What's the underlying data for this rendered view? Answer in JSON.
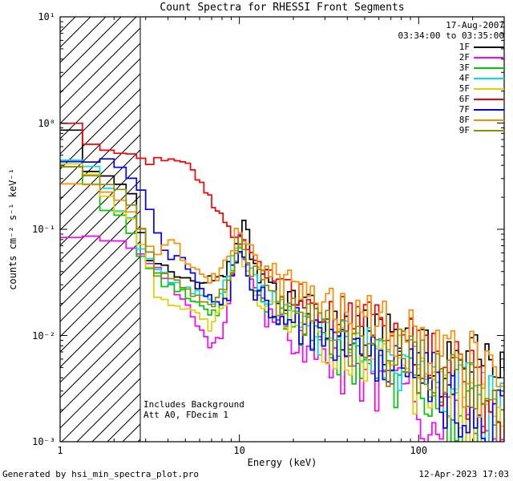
{
  "title": "Count Spectra for RHESSI Front Segments",
  "header": {
    "date": "17-Aug-2007",
    "time_range": "03:34:00 to 03:35:00"
  },
  "annotations": {
    "background": "Includes Background",
    "attenuator": "Att A0, FDecim 1"
  },
  "footer": {
    "generator": "Generated by hsi_min_spectra_plot.pro",
    "timestamp": "12-Apr-2023 17:03"
  },
  "axes": {
    "x_label": "Energy (keV)",
    "y_label": "counts cm⁻² s⁻¹ keV⁻¹",
    "x_ticks": [
      {
        "value": 1,
        "label": "1"
      },
      {
        "value": 10,
        "label": "10"
      },
      {
        "value": 100,
        "label": "100"
      }
    ],
    "y_ticks": [
      {
        "value": 10,
        "label": "10¹"
      },
      {
        "value": 1,
        "label": "10⁰"
      },
      {
        "value": 0.1,
        "label": "10⁻¹"
      },
      {
        "value": 0.01,
        "label": "10⁻²"
      },
      {
        "value": 0.001,
        "label": "10⁻³"
      }
    ]
  },
  "chart_data": {
    "type": "line",
    "title": "Count Spectra for RHESSI Front Segments",
    "xlabel": "Energy (keV)",
    "ylabel": "counts cm⁻² s⁻¹ keV⁻¹",
    "x_scale": "log",
    "y_scale": "log",
    "xlim": [
      1,
      300
    ],
    "ylim": [
      0.001,
      10
    ],
    "grid": false,
    "legend_position": "top-right",
    "excluded_region": {
      "from": 1,
      "to": 2.8,
      "style": "diagonal-hatch"
    },
    "series": [
      {
        "name": "1F",
        "color": "#000000",
        "points": [
          [
            1.0,
            0.25
          ],
          [
            1.2,
            1.0
          ],
          [
            1.5,
            0.35
          ],
          [
            2.0,
            0.3
          ],
          [
            2.5,
            0.22
          ],
          [
            3.0,
            0.06
          ],
          [
            4.0,
            0.045
          ],
          [
            5.0,
            0.035
          ],
          [
            6.0,
            0.03
          ],
          [
            7.0,
            0.035
          ],
          [
            8.0,
            0.04
          ],
          [
            9.0,
            0.05
          ],
          [
            10,
            0.09
          ],
          [
            11,
            0.13
          ],
          [
            12,
            0.05
          ],
          [
            15,
            0.03
          ],
          [
            20,
            0.022
          ],
          [
            30,
            0.015
          ],
          [
            50,
            0.012
          ],
          [
            80,
            0.009
          ],
          [
            120,
            0.007
          ],
          [
            200,
            0.0055
          ],
          [
            300,
            0.004
          ]
        ]
      },
      {
        "name": "2F",
        "color": "#ff00ff",
        "points": [
          [
            1.0,
            0.09
          ],
          [
            1.5,
            0.085
          ],
          [
            2.0,
            0.08
          ],
          [
            2.5,
            0.07
          ],
          [
            3.0,
            0.05
          ],
          [
            4.0,
            0.035
          ],
          [
            5.0,
            0.02
          ],
          [
            6.0,
            0.012
          ],
          [
            7.0,
            0.008
          ],
          [
            8.0,
            0.01
          ],
          [
            9.0,
            0.03
          ],
          [
            10,
            0.08
          ],
          [
            11,
            0.06
          ],
          [
            12,
            0.025
          ],
          [
            15,
            0.015
          ],
          [
            20,
            0.01
          ],
          [
            30,
            0.007
          ],
          [
            50,
            0.004
          ],
          [
            80,
            0.003
          ],
          [
            120,
            0.002
          ],
          [
            200,
            0.0012
          ],
          [
            300,
            0.001
          ]
        ]
      },
      {
        "name": "3F",
        "color": "#00c800",
        "points": [
          [
            1.0,
            0.3
          ],
          [
            1.3,
            0.45
          ],
          [
            1.6,
            0.2
          ],
          [
            2.0,
            0.15
          ],
          [
            2.5,
            0.1
          ],
          [
            3.0,
            0.05
          ],
          [
            4.0,
            0.03
          ],
          [
            5.0,
            0.025
          ],
          [
            6.0,
            0.02
          ],
          [
            7.0,
            0.015
          ],
          [
            8.0,
            0.02
          ],
          [
            9.0,
            0.04
          ],
          [
            10,
            0.07
          ],
          [
            11,
            0.05
          ],
          [
            12,
            0.03
          ],
          [
            15,
            0.02
          ],
          [
            20,
            0.014
          ],
          [
            30,
            0.009
          ],
          [
            50,
            0.006
          ],
          [
            80,
            0.004
          ],
          [
            120,
            0.003
          ],
          [
            200,
            0.0018
          ],
          [
            300,
            0.0012
          ]
        ]
      },
      {
        "name": "4F",
        "color": "#00e0e0",
        "points": [
          [
            1.0,
            0.25
          ],
          [
            1.3,
            0.6
          ],
          [
            1.6,
            0.3
          ],
          [
            2.0,
            0.2
          ],
          [
            2.5,
            0.12
          ],
          [
            3.0,
            0.055
          ],
          [
            4.0,
            0.035
          ],
          [
            5.0,
            0.03
          ],
          [
            6.0,
            0.025
          ],
          [
            7.0,
            0.02
          ],
          [
            8.0,
            0.025
          ],
          [
            9.0,
            0.045
          ],
          [
            10,
            0.08
          ],
          [
            11,
            0.06
          ],
          [
            12,
            0.035
          ],
          [
            15,
            0.022
          ],
          [
            20,
            0.016
          ],
          [
            30,
            0.011
          ],
          [
            50,
            0.008
          ],
          [
            80,
            0.006
          ],
          [
            120,
            0.0045
          ],
          [
            200,
            0.003
          ],
          [
            300,
            0.002
          ]
        ]
      },
      {
        "name": "5F",
        "color": "#e0d000",
        "points": [
          [
            1.0,
            0.35
          ],
          [
            1.3,
            0.5
          ],
          [
            1.6,
            0.25
          ],
          [
            2.0,
            0.18
          ],
          [
            2.5,
            0.12
          ],
          [
            3.0,
            0.06
          ],
          [
            3.5,
            0.025
          ],
          [
            4.0,
            0.02
          ],
          [
            5.0,
            0.018
          ],
          [
            6.0,
            0.015
          ],
          [
            7.0,
            0.012
          ],
          [
            8.0,
            0.018
          ],
          [
            9.0,
            0.035
          ],
          [
            10,
            0.07
          ],
          [
            11,
            0.05
          ],
          [
            12,
            0.03
          ],
          [
            15,
            0.02
          ],
          [
            20,
            0.014
          ],
          [
            30,
            0.01
          ],
          [
            50,
            0.007
          ],
          [
            80,
            0.005
          ],
          [
            120,
            0.0035
          ],
          [
            200,
            0.002
          ],
          [
            300,
            0.0013
          ]
        ]
      },
      {
        "name": "6F",
        "color": "#ff0000",
        "points": [
          [
            1.0,
            0.5
          ],
          [
            1.2,
            1.1
          ],
          [
            1.5,
            0.7
          ],
          [
            2.0,
            0.55
          ],
          [
            2.5,
            0.5
          ],
          [
            3.0,
            0.45
          ],
          [
            4.0,
            0.45
          ],
          [
            5.0,
            0.42
          ],
          [
            5.5,
            0.35
          ],
          [
            6.0,
            0.3
          ],
          [
            6.5,
            0.25
          ],
          [
            7.0,
            0.2
          ],
          [
            8.0,
            0.13
          ],
          [
            9.0,
            0.1
          ],
          [
            10,
            0.09
          ],
          [
            11,
            0.08
          ],
          [
            12,
            0.05
          ],
          [
            15,
            0.035
          ],
          [
            20,
            0.028
          ],
          [
            30,
            0.02
          ],
          [
            50,
            0.014
          ],
          [
            80,
            0.01
          ],
          [
            120,
            0.007
          ],
          [
            200,
            0.004
          ],
          [
            300,
            0.002
          ]
        ]
      },
      {
        "name": "7F",
        "color": "#0000ff",
        "points": [
          [
            1.0,
            0.3
          ],
          [
            1.3,
            0.5
          ],
          [
            1.6,
            0.45
          ],
          [
            2.0,
            0.42
          ],
          [
            2.3,
            0.35
          ],
          [
            2.6,
            0.28
          ],
          [
            3.0,
            0.2
          ],
          [
            3.3,
            0.12
          ],
          [
            3.6,
            0.08
          ],
          [
            4.0,
            0.06
          ],
          [
            5.0,
            0.05
          ],
          [
            6.0,
            0.03
          ],
          [
            7.0,
            0.022
          ],
          [
            8.0,
            0.018
          ],
          [
            9.0,
            0.03
          ],
          [
            10,
            0.06
          ],
          [
            11,
            0.045
          ],
          [
            12,
            0.03
          ],
          [
            15,
            0.02
          ],
          [
            20,
            0.015
          ],
          [
            30,
            0.01
          ],
          [
            50,
            0.007
          ],
          [
            80,
            0.005
          ],
          [
            120,
            0.004
          ],
          [
            200,
            0.0025
          ],
          [
            300,
            0.0015
          ]
        ]
      },
      {
        "name": "8F",
        "color": "#ff8c00",
        "points": [
          [
            1.0,
            0.2
          ],
          [
            1.3,
            0.35
          ],
          [
            1.6,
            0.25
          ],
          [
            2.0,
            0.2
          ],
          [
            2.5,
            0.15
          ],
          [
            3.0,
            0.08
          ],
          [
            3.5,
            0.06
          ],
          [
            4.0,
            0.09
          ],
          [
            4.5,
            0.07
          ],
          [
            5.0,
            0.05
          ],
          [
            6.0,
            0.04
          ],
          [
            7.0,
            0.035
          ],
          [
            8.0,
            0.04
          ],
          [
            9.0,
            0.06
          ],
          [
            10,
            0.11
          ],
          [
            11,
            0.09
          ],
          [
            12,
            0.06
          ],
          [
            15,
            0.04
          ],
          [
            20,
            0.03
          ],
          [
            30,
            0.022
          ],
          [
            50,
            0.016
          ],
          [
            80,
            0.012
          ],
          [
            120,
            0.009
          ],
          [
            200,
            0.006
          ],
          [
            300,
            0.003
          ]
        ]
      },
      {
        "name": "9F",
        "color": "#8f8c00",
        "points": [
          [
            1.0,
            0.35
          ],
          [
            1.3,
            0.4
          ],
          [
            1.6,
            0.3
          ],
          [
            2.0,
            0.25
          ],
          [
            2.5,
            0.18
          ],
          [
            3.0,
            0.07
          ],
          [
            3.5,
            0.04
          ],
          [
            4.0,
            0.035
          ],
          [
            5.0,
            0.028
          ],
          [
            6.0,
            0.022
          ],
          [
            7.0,
            0.02
          ],
          [
            8.0,
            0.025
          ],
          [
            9.0,
            0.045
          ],
          [
            10,
            0.08
          ],
          [
            11,
            0.06
          ],
          [
            12,
            0.04
          ],
          [
            15,
            0.025
          ],
          [
            20,
            0.018
          ],
          [
            30,
            0.013
          ],
          [
            50,
            0.009
          ],
          [
            80,
            0.007
          ],
          [
            120,
            0.005
          ],
          [
            200,
            0.003
          ],
          [
            300,
            0.0018
          ]
        ]
      }
    ]
  }
}
